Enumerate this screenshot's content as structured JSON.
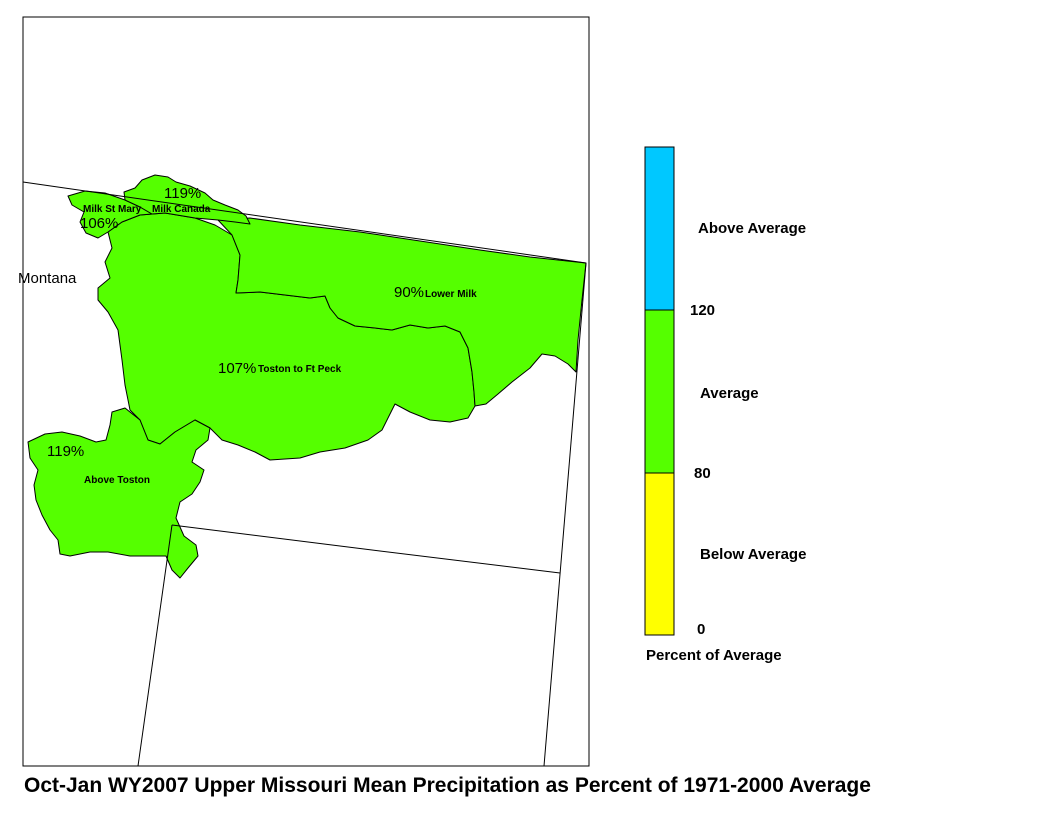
{
  "title": "Oct-Jan WY2007 Upper Missouri Mean Precipitation as Percent of 1971-2000 Average",
  "state_label": "Montana",
  "basins": [
    {
      "name": "Milk St Mary",
      "percent": "106%",
      "category": "Average"
    },
    {
      "name": "Milk Canada",
      "percent": "119%",
      "category": "Average"
    },
    {
      "name": "Lower Milk",
      "percent": "90%",
      "category": "Average"
    },
    {
      "name": "Toston to Ft Peck",
      "percent": "107%",
      "category": "Average"
    },
    {
      "name": "Above Toston",
      "percent": "119%",
      "category": "Average"
    }
  ],
  "legend": {
    "title": "Percent of Average",
    "classes": [
      {
        "label": "Above Average",
        "color": "#00c8ff",
        "from": 120,
        "to": null
      },
      {
        "label": "Average",
        "color": "#55ff00",
        "from": 80,
        "to": 120
      },
      {
        "label": "Below Average",
        "color": "#ffff00",
        "from": 0,
        "to": 80
      }
    ],
    "breaks": [
      "120",
      "80",
      "0"
    ]
  }
}
